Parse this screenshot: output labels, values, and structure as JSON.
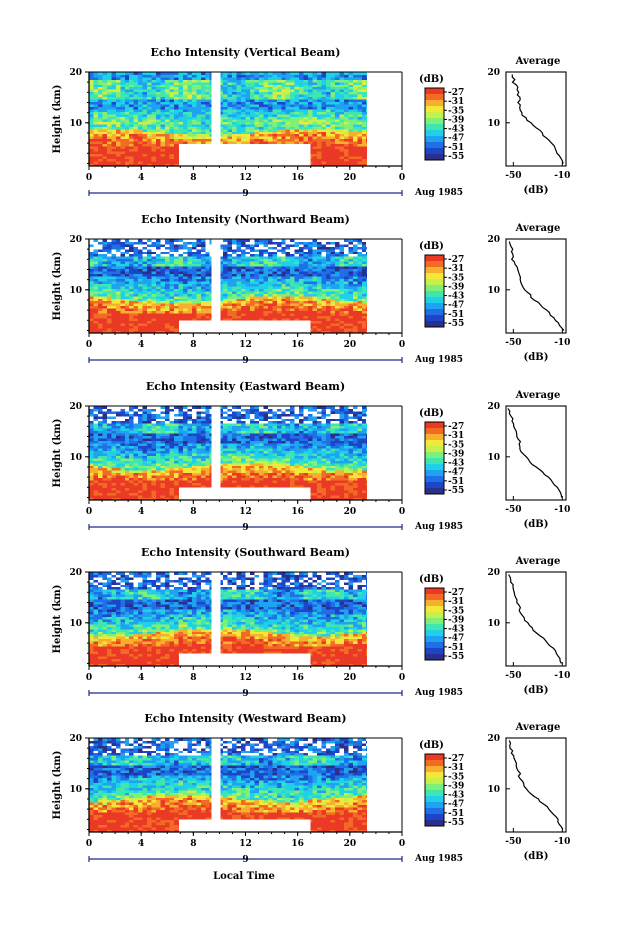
{
  "figure": {
    "x_axis_label": "Local Time",
    "date_label": "Aug 1985",
    "day_label": "9"
  },
  "colors": {
    "scale": [
      "#2b2f8c",
      "#1c45c8",
      "#1f6fe6",
      "#1fa2f0",
      "#1fd0e8",
      "#3fe6b0",
      "#7ef07a",
      "#c8f04a",
      "#f5e63a",
      "#f7b02e",
      "#f26a24",
      "#ea3a26"
    ],
    "gap": "#ffffff",
    "axis": "#000000",
    "date_bar": "#1b2a8a"
  },
  "chart_data": [
    {
      "type": "heatmap",
      "title": "Echo Intensity (Vertical Beam)",
      "x_ticks": [
        "0",
        "4",
        "8",
        "12",
        "16",
        "20",
        "0"
      ],
      "xlim": [
        0,
        24
      ],
      "ylabel": "Height (km)",
      "y_ticks": [
        "10",
        "20"
      ],
      "ylim": [
        1.5,
        20
      ],
      "data_gaps": [
        {
          "x": [
            9.4,
            10.1
          ],
          "y": [
            1.5,
            20
          ]
        },
        {
          "x": [
            21.3,
            24
          ],
          "y": [
            1.5,
            20
          ]
        },
        {
          "x": [
            6.9,
            17.0
          ],
          "y": [
            1.5,
            5.8
          ]
        }
      ],
      "colorbar": {
        "label": "(dB)",
        "ticks": [
          "-27",
          "-31",
          "-35",
          "-39",
          "-43",
          "-47",
          "-51",
          "-55"
        ]
      },
      "profile": {
        "title": "Average",
        "xlabel": "(dB)",
        "x_ticks": [
          "-50",
          "-10"
        ],
        "xlim": [
          -56,
          -7
        ],
        "y_ticks": [
          "10",
          "20"
        ],
        "ylim": [
          1.5,
          20
        ],
        "points": [
          [
            -50,
            19.5
          ],
          [
            -50,
            19
          ],
          [
            -49,
            18.5
          ],
          [
            -50,
            18
          ],
          [
            -48,
            17.5
          ],
          [
            -47,
            17
          ],
          [
            -47,
            16.5
          ],
          [
            -46,
            16
          ],
          [
            -46,
            15.5
          ],
          [
            -45,
            15
          ],
          [
            -45,
            14.5
          ],
          [
            -46,
            14
          ],
          [
            -45,
            13.5
          ],
          [
            -44,
            13
          ],
          [
            -44,
            12.5
          ],
          [
            -43,
            12
          ],
          [
            -42,
            11.5
          ],
          [
            -40,
            11
          ],
          [
            -38,
            10.5
          ],
          [
            -36,
            10
          ],
          [
            -33,
            9.5
          ],
          [
            -31,
            9
          ],
          [
            -29,
            8.5
          ],
          [
            -27,
            8
          ],
          [
            -25,
            7.5
          ],
          [
            -22,
            7
          ],
          [
            -20,
            6.5
          ],
          [
            -19,
            6
          ],
          [
            -17,
            5.5
          ],
          [
            -15,
            5
          ],
          [
            -16,
            4.5
          ],
          [
            -14,
            4
          ],
          [
            -12,
            3.5
          ],
          [
            -11,
            3
          ],
          [
            -10,
            2.5
          ],
          [
            -9,
            2
          ]
        ]
      }
    },
    {
      "type": "heatmap",
      "title": "Echo Intensity (Northward Beam)",
      "x_ticks": [
        "0",
        "4",
        "8",
        "12",
        "16",
        "20",
        "0"
      ],
      "xlim": [
        0,
        24
      ],
      "ylabel": "Height (km)",
      "y_ticks": [
        "10",
        "20"
      ],
      "ylim": [
        1.5,
        20
      ],
      "data_gaps": [
        {
          "x": [
            9.4,
            10.1
          ],
          "y": [
            1.5,
            20
          ]
        },
        {
          "x": [
            21.3,
            24
          ],
          "y": [
            1.5,
            20
          ]
        },
        {
          "x": [
            6.9,
            17.0
          ],
          "y": [
            1.5,
            4.0
          ]
        }
      ],
      "colorbar": {
        "label": "(dB)",
        "ticks": [
          "-27",
          "-31",
          "-35",
          "-39",
          "-43",
          "-47",
          "-51",
          "-55"
        ]
      },
      "profile": {
        "title": "Average",
        "xlabel": "(dB)",
        "x_ticks": [
          "-50",
          "-10"
        ],
        "xlim": [
          -56,
          -7
        ],
        "y_ticks": [
          "10",
          "20"
        ],
        "ylim": [
          1.5,
          20
        ],
        "points": [
          [
            -53,
            19.5
          ],
          [
            -52,
            19
          ],
          [
            -52,
            18.5
          ],
          [
            -51,
            18
          ],
          [
            -51,
            17.5
          ],
          [
            -51,
            17
          ],
          [
            -50,
            16.5
          ],
          [
            -51,
            16
          ],
          [
            -49,
            15.5
          ],
          [
            -48,
            15
          ],
          [
            -47,
            14.5
          ],
          [
            -47,
            14
          ],
          [
            -46,
            13.5
          ],
          [
            -45,
            13
          ],
          [
            -45,
            12.5
          ],
          [
            -44,
            12
          ],
          [
            -44,
            11.5
          ],
          [
            -43,
            11
          ],
          [
            -42,
            10.5
          ],
          [
            -40,
            10
          ],
          [
            -38,
            9.5
          ],
          [
            -36,
            9
          ],
          [
            -35,
            8.5
          ],
          [
            -33,
            8
          ],
          [
            -30,
            7.5
          ],
          [
            -27,
            7
          ],
          [
            -25,
            6.5
          ],
          [
            -23,
            6
          ],
          [
            -21,
            5.5
          ],
          [
            -19,
            5
          ],
          [
            -17,
            4.5
          ],
          [
            -16,
            4
          ],
          [
            -14,
            3.5
          ],
          [
            -12,
            3
          ],
          [
            -11,
            2.5
          ],
          [
            -9,
            2
          ]
        ]
      }
    },
    {
      "type": "heatmap",
      "title": "Echo Intensity (Eastward Beam)",
      "x_ticks": [
        "0",
        "4",
        "8",
        "12",
        "16",
        "20",
        "0"
      ],
      "xlim": [
        0,
        24
      ],
      "ylabel": "Height (km)",
      "y_ticks": [
        "10",
        "20"
      ],
      "ylim": [
        1.5,
        20
      ],
      "data_gaps": [
        {
          "x": [
            9.4,
            10.1
          ],
          "y": [
            1.5,
            20
          ]
        },
        {
          "x": [
            21.3,
            24
          ],
          "y": [
            1.5,
            20
          ]
        },
        {
          "x": [
            6.9,
            17.0
          ],
          "y": [
            1.5,
            4.0
          ]
        }
      ],
      "colorbar": {
        "label": "(dB)",
        "ticks": [
          "-27",
          "-31",
          "-35",
          "-39",
          "-43",
          "-47",
          "-51",
          "-55"
        ]
      },
      "profile": {
        "title": "Average",
        "xlabel": "(dB)",
        "x_ticks": [
          "-50",
          "-10"
        ],
        "xlim": [
          -56,
          -7
        ],
        "y_ticks": [
          "10",
          "20"
        ],
        "ylim": [
          1.5,
          20
        ],
        "points": [
          [
            -54,
            19.5
          ],
          [
            -53,
            19
          ],
          [
            -53,
            18.5
          ],
          [
            -52,
            18
          ],
          [
            -51,
            17.5
          ],
          [
            -51,
            17
          ],
          [
            -50,
            16.5
          ],
          [
            -50,
            16
          ],
          [
            -49,
            15.5
          ],
          [
            -48,
            15
          ],
          [
            -47,
            14.5
          ],
          [
            -47,
            14
          ],
          [
            -46,
            13.5
          ],
          [
            -45,
            13
          ],
          [
            -45,
            12.5
          ],
          [
            -44,
            12
          ],
          [
            -44,
            11.5
          ],
          [
            -43,
            11
          ],
          [
            -42,
            10.5
          ],
          [
            -40,
            10
          ],
          [
            -38,
            9.5
          ],
          [
            -36,
            9
          ],
          [
            -34,
            8.5
          ],
          [
            -32,
            8
          ],
          [
            -29,
            7.5
          ],
          [
            -26,
            7
          ],
          [
            -24,
            6.5
          ],
          [
            -22,
            6
          ],
          [
            -20,
            5.5
          ],
          [
            -18,
            5
          ],
          [
            -16,
            4.5
          ],
          [
            -15,
            4
          ],
          [
            -13,
            3.5
          ],
          [
            -12,
            3
          ],
          [
            -11,
            2.5
          ],
          [
            -10,
            2
          ]
        ]
      }
    },
    {
      "type": "heatmap",
      "title": "Echo Intensity (Southward Beam)",
      "x_ticks": [
        "0",
        "4",
        "8",
        "12",
        "16",
        "20",
        "0"
      ],
      "xlim": [
        0,
        24
      ],
      "ylabel": "Height (km)",
      "y_ticks": [
        "10",
        "20"
      ],
      "ylim": [
        1.5,
        20
      ],
      "data_gaps": [
        {
          "x": [
            9.4,
            10.1
          ],
          "y": [
            1.5,
            20
          ]
        },
        {
          "x": [
            21.3,
            24
          ],
          "y": [
            1.5,
            20
          ]
        },
        {
          "x": [
            6.9,
            17.0
          ],
          "y": [
            1.5,
            4.0
          ]
        }
      ],
      "colorbar": {
        "label": "(dB)",
        "ticks": [
          "-27",
          "-31",
          "-35",
          "-39",
          "-43",
          "-47",
          "-51",
          "-55"
        ]
      },
      "profile": {
        "title": "Average",
        "xlabel": "(dB)",
        "x_ticks": [
          "-50",
          "-10"
        ],
        "xlim": [
          -56,
          -7
        ],
        "y_ticks": [
          "10",
          "20"
        ],
        "ylim": [
          1.5,
          20
        ],
        "points": [
          [
            -53,
            19.5
          ],
          [
            -53,
            19
          ],
          [
            -52,
            18.5
          ],
          [
            -52,
            18
          ],
          [
            -51,
            17.5
          ],
          [
            -51,
            17
          ],
          [
            -50,
            16.5
          ],
          [
            -50,
            16
          ],
          [
            -49,
            15.5
          ],
          [
            -48,
            15
          ],
          [
            -47,
            14.5
          ],
          [
            -47,
            14
          ],
          [
            -46,
            13.5
          ],
          [
            -45,
            13
          ],
          [
            -45,
            12.5
          ],
          [
            -44,
            12
          ],
          [
            -43,
            11.5
          ],
          [
            -42,
            11
          ],
          [
            -41,
            10.5
          ],
          [
            -39,
            10
          ],
          [
            -37,
            9.5
          ],
          [
            -35,
            9
          ],
          [
            -33,
            8.5
          ],
          [
            -31,
            8
          ],
          [
            -28,
            7.5
          ],
          [
            -26,
            7
          ],
          [
            -24,
            6.5
          ],
          [
            -22,
            6
          ],
          [
            -20,
            5.5
          ],
          [
            -18,
            5
          ],
          [
            -16,
            4.5
          ],
          [
            -15,
            4
          ],
          [
            -13,
            3.5
          ],
          [
            -12,
            3
          ],
          [
            -11,
            2.5
          ],
          [
            -10,
            2
          ]
        ]
      }
    },
    {
      "type": "heatmap",
      "title": "Echo Intensity (Westward Beam)",
      "x_ticks": [
        "0",
        "4",
        "8",
        "12",
        "16",
        "20",
        "0"
      ],
      "xlim": [
        0,
        24
      ],
      "ylabel": "Height (km)",
      "y_ticks": [
        "10",
        "20"
      ],
      "ylim": [
        1.5,
        20
      ],
      "data_gaps": [
        {
          "x": [
            9.4,
            10.1
          ],
          "y": [
            1.5,
            20
          ]
        },
        {
          "x": [
            21.3,
            24
          ],
          "y": [
            1.5,
            20
          ]
        },
        {
          "x": [
            6.9,
            17.0
          ],
          "y": [
            1.5,
            4.0
          ]
        }
      ],
      "colorbar": {
        "label": "(dB)",
        "ticks": [
          "-27",
          "-31",
          "-35",
          "-39",
          "-43",
          "-47",
          "-51",
          "-55"
        ]
      },
      "profile": {
        "title": "Average",
        "xlabel": "(dB)",
        "x_ticks": [
          "-50",
          "-10"
        ],
        "xlim": [
          -56,
          -7
        ],
        "y_ticks": [
          "10",
          "20"
        ],
        "ylim": [
          1.5,
          20
        ],
        "points": [
          [
            -54,
            19.5
          ],
          [
            -53,
            19
          ],
          [
            -53,
            18.5
          ],
          [
            -52,
            18
          ],
          [
            -51,
            17.5
          ],
          [
            -51,
            17
          ],
          [
            -50,
            16.5
          ],
          [
            -50,
            16
          ],
          [
            -49,
            15.5
          ],
          [
            -48,
            15
          ],
          [
            -47,
            14.5
          ],
          [
            -47,
            14
          ],
          [
            -46,
            13.5
          ],
          [
            -45,
            13
          ],
          [
            -45,
            12.5
          ],
          [
            -44,
            12
          ],
          [
            -43,
            11.5
          ],
          [
            -42,
            11
          ],
          [
            -41,
            10.5
          ],
          [
            -39,
            10
          ],
          [
            -37,
            9.5
          ],
          [
            -35,
            9
          ],
          [
            -33,
            8.5
          ],
          [
            -30,
            8
          ],
          [
            -28,
            7.5
          ],
          [
            -25,
            7
          ],
          [
            -23,
            6.5
          ],
          [
            -21,
            6
          ],
          [
            -19,
            5.5
          ],
          [
            -17,
            5
          ],
          [
            -15,
            4.5
          ],
          [
            -14,
            4
          ],
          [
            -13,
            3.5
          ],
          [
            -12,
            3
          ],
          [
            -11,
            2.5
          ],
          [
            -10,
            2
          ]
        ]
      }
    }
  ]
}
